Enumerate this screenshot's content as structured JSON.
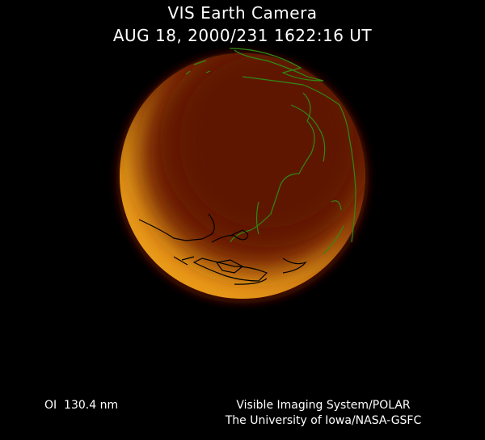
{
  "header": {
    "title": "VIS Earth Camera",
    "timestamp": "AUG 18, 2000/231 1622:16 UT"
  },
  "footer": {
    "filter": "OI  130.4 nm",
    "credit_line1": "Visible Imaging System/POLAR",
    "credit_line2": "The University of Iowa/NASA-GSFC"
  },
  "colors": {
    "background": "#000000",
    "disk_dark": "#5e1604",
    "disk_bright": "#ffe830",
    "coastline_north": "#2f8a12",
    "coastline_south": "#000000"
  }
}
